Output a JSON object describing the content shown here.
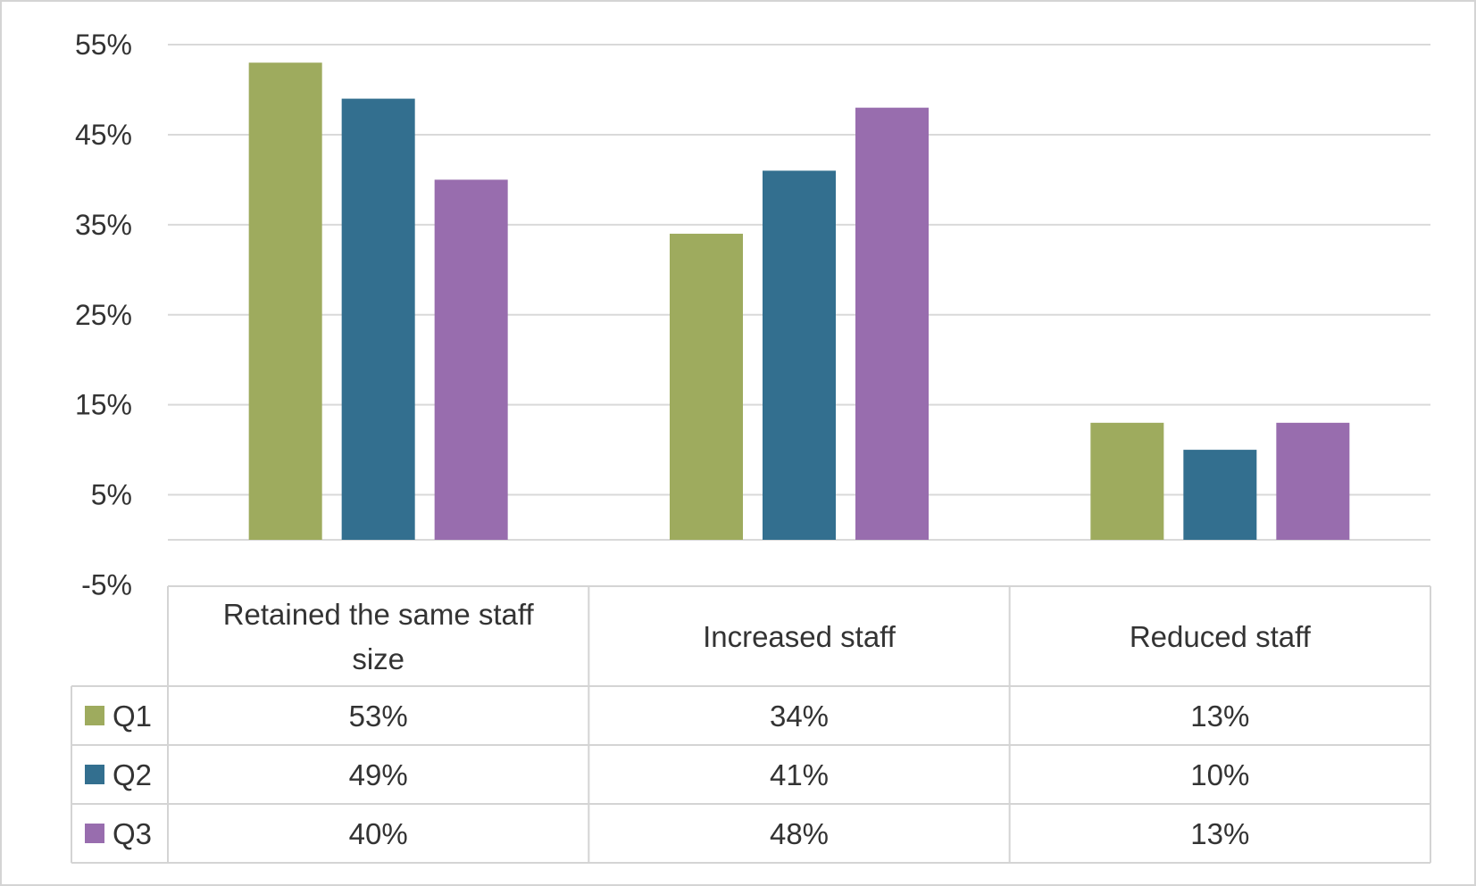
{
  "chart_data": {
    "type": "bar",
    "title": "",
    "xlabel": "",
    "ylabel": "",
    "ylim": [
      -5,
      55
    ],
    "y_ticks": [
      "55%",
      "45%",
      "35%",
      "25%",
      "15%",
      "5%",
      "-5%"
    ],
    "y_tick_values": [
      55,
      45,
      35,
      25,
      15,
      5,
      -5
    ],
    "grid": true,
    "legend": "data-table",
    "categories": [
      [
        "Retained the same staff",
        "size"
      ],
      [
        "Increased staff"
      ],
      [
        "Reduced staff"
      ]
    ],
    "category_labels": [
      "Retained the same staff size",
      "Increased staff",
      "Reduced staff"
    ],
    "series": [
      {
        "name": "Q1",
        "color": "#9eab5e",
        "values": [
          53,
          34,
          13
        ],
        "labels": [
          "53%",
          "34%",
          "13%"
        ]
      },
      {
        "name": "Q2",
        "color": "#336f8f",
        "values": [
          49,
          41,
          10
        ],
        "labels": [
          "49%",
          "41%",
          "10%"
        ]
      },
      {
        "name": "Q3",
        "color": "#986dae",
        "values": [
          40,
          48,
          13
        ],
        "labels": [
          "40%",
          "48%",
          "13%"
        ]
      }
    ]
  }
}
